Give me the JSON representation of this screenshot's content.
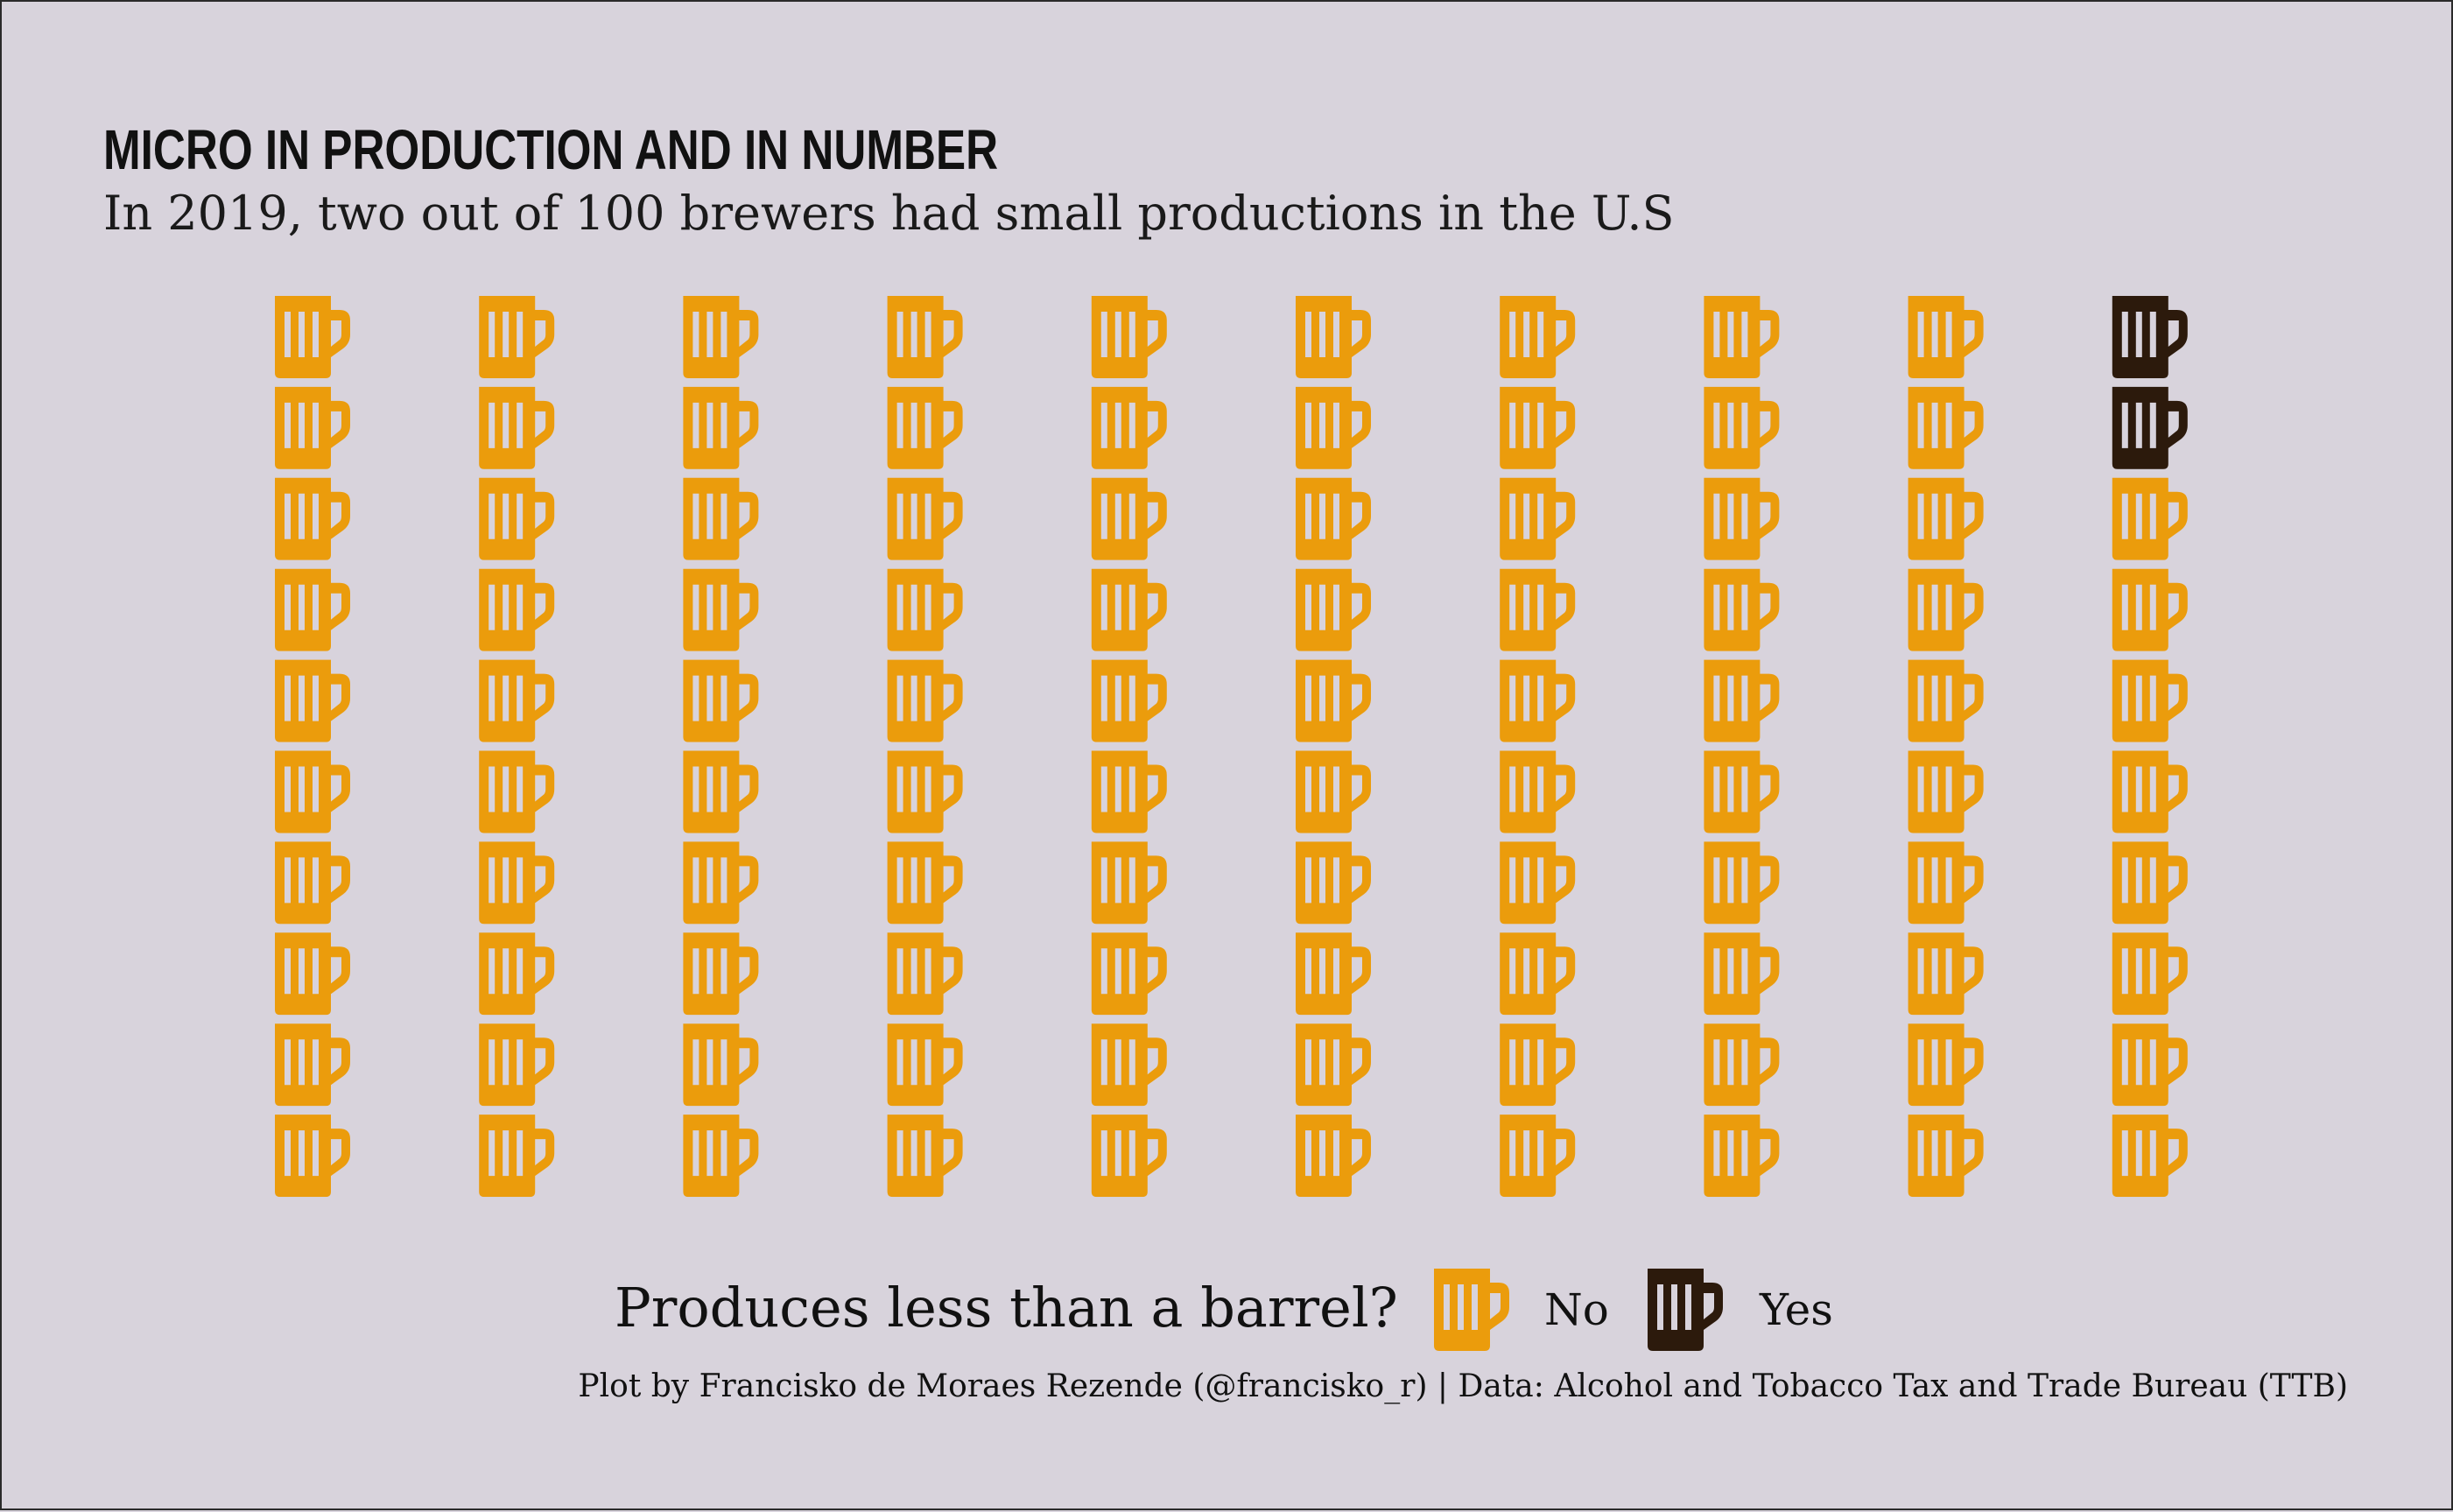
{
  "title": "MICRO IN PRODUCTION AND IN NUMBER",
  "subtitle": "In 2019, two out of 100 brewers had small productions in the U.S",
  "caption": "Plot by Francisko de Moraes Rezende (@francisko_r) | Data: Alcohol and Tobacco Tax and Trade Bureau (TTB)",
  "colors": {
    "background": "#d8d3dc",
    "no": "#eb9c0c",
    "yes": "#2c1a0c"
  },
  "icon": "beer-mug-icon",
  "chart_data": {
    "type": "waffle",
    "grid": {
      "columns": 10,
      "rows": 10
    },
    "total": 100,
    "categories": [
      "No",
      "Yes"
    ],
    "values": [
      98,
      2
    ],
    "legend_title": "Produces less than a barrel?",
    "legend_position": "bottom"
  }
}
